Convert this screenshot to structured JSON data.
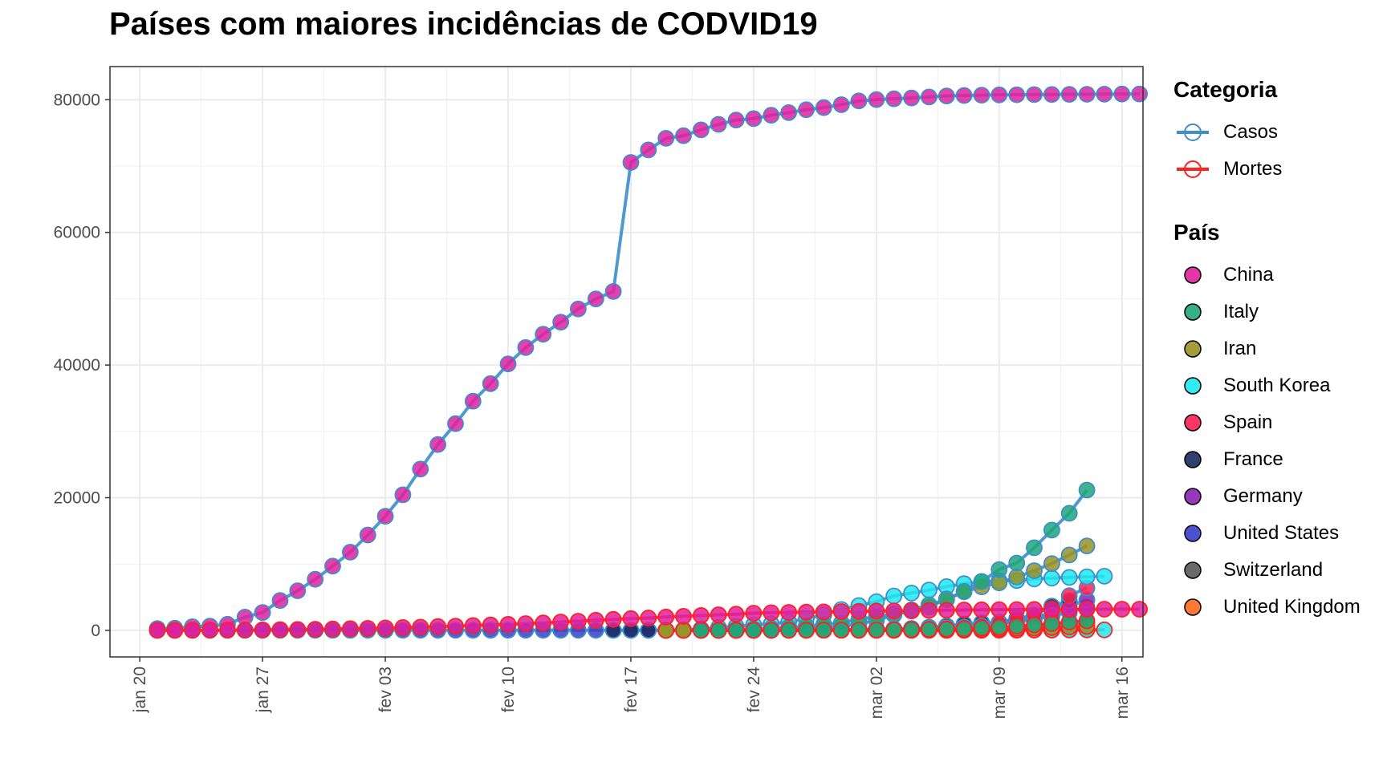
{
  "title": "Países com maiores incidências de CODVID19",
  "legend": {
    "category_title": "Categoria",
    "categories": [
      {
        "label": "Casos",
        "color": "#3d8ec9"
      },
      {
        "label": "Mortes",
        "color": "#ff2020"
      }
    ],
    "country_title": "País",
    "countries": [
      {
        "label": "China",
        "color": "#e0209f"
      },
      {
        "label": "Italy",
        "color": "#1fa67a"
      },
      {
        "label": "Iran",
        "color": "#999226"
      },
      {
        "label": "South Korea",
        "color": "#1ee8f0"
      },
      {
        "label": "Spain",
        "color": "#ff1f55"
      },
      {
        "label": "France",
        "color": "#1b2a5e"
      },
      {
        "label": "Germany",
        "color": "#8b22b5"
      },
      {
        "label": "United States",
        "color": "#3a3ec8"
      },
      {
        "label": "Switzerland",
        "color": "#5a5a5a"
      },
      {
        "label": "United Kingdom",
        "color": "#ff6a1f"
      }
    ]
  },
  "chart_data": {
    "type": "line",
    "title": "Países com maiores incidências de CODVID19",
    "xlabel": "",
    "ylabel": "",
    "x_range": [
      "2020-01-20",
      "2020-03-16"
    ],
    "ylim": [
      -4000,
      85000
    ],
    "x_ticks": [
      "jan 20",
      "jan 27",
      "fev 03",
      "fev 10",
      "fev 17",
      "fev 24",
      "mar 02",
      "mar 09",
      "mar 16"
    ],
    "y_ticks": [
      "0",
      "20000",
      "40000",
      "60000",
      "80000"
    ],
    "grid": true,
    "legend_position": "right",
    "series": [
      {
        "name": "China",
        "category": "Casos",
        "start": "2020-01-21",
        "values": [
          278,
          326,
          547,
          639,
          916,
          2000,
          2700,
          4500,
          5974,
          7711,
          9692,
          11791,
          14380,
          17205,
          20438,
          24324,
          28018,
          31161,
          34546,
          37198,
          40171,
          42638,
          44653,
          46472,
          48467,
          49970,
          51091,
          70548,
          72436,
          74185,
          74576,
          75465,
          76288,
          76936,
          77150,
          77658,
          78064,
          78497,
          78824,
          79251,
          79824,
          80026,
          80151,
          80271,
          80422,
          80573,
          80652,
          80699,
          80735,
          80754,
          80778,
          80793,
          80813,
          80824,
          80844,
          80860,
          80881
        ]
      },
      {
        "name": "China",
        "category": "Mortes",
        "start": "2020-01-21",
        "values": [
          6,
          6,
          17,
          25,
          41,
          56,
          80,
          106,
          132,
          170,
          213,
          259,
          304,
          362,
          426,
          492,
          565,
          638,
          724,
          813,
          908,
          1016,
          1113,
          1259,
          1380,
          1523,
          1665,
          1770,
          1868,
          2004,
          2118,
          2236,
          2345,
          2442,
          2592,
          2663,
          2715,
          2744,
          2788,
          2835,
          2870,
          2912,
          2943,
          2981,
          3013,
          3042,
          3070,
          3097,
          3119,
          3136,
          3158,
          3169,
          3176,
          3189,
          3199,
          3199,
          3199
        ]
      },
      {
        "name": "Italy",
        "category": "Casos",
        "start": "2020-02-21",
        "values": [
          20,
          62,
          155,
          229,
          322,
          453,
          655,
          888,
          1128,
          1694,
          2036,
          2502,
          3089,
          3858,
          4636,
          5883,
          7375,
          9172,
          10149,
          12462,
          15113,
          17660,
          21157
        ]
      },
      {
        "name": "Italy",
        "category": "Mortes",
        "start": "2020-02-21",
        "values": [
          1,
          2,
          3,
          7,
          10,
          12,
          17,
          21,
          29,
          34,
          52,
          79,
          107,
          148,
          197,
          233,
          366,
          463,
          631,
          827,
          1016,
          1266,
          1441
        ]
      },
      {
        "name": "Iran",
        "category": "Casos",
        "start": "2020-02-19",
        "values": [
          2,
          5,
          18,
          28,
          43,
          61,
          95,
          139,
          245,
          388,
          593,
          978,
          1501,
          2336,
          2922,
          3513,
          4747,
          5823,
          6566,
          7161,
          8042,
          9000,
          10075,
          11364,
          12729
        ]
      },
      {
        "name": "Iran",
        "category": "Mortes",
        "start": "2020-02-19",
        "values": [
          2,
          2,
          4,
          5,
          8,
          12,
          16,
          19,
          26,
          34,
          43,
          54,
          66,
          77,
          92,
          107,
          124,
          145,
          194,
          237,
          291,
          354,
          429,
          514,
          611
        ]
      },
      {
        "name": "South Korea",
        "category": "Casos",
        "start": "2020-02-19",
        "values": [
          51,
          104,
          204,
          433,
          602,
          833,
          977,
          1261,
          1766,
          2337,
          3150,
          3736,
          4335,
          5186,
          5621,
          6088,
          6593,
          7041,
          7314,
          7478,
          7513,
          7755,
          7869,
          7979,
          8086,
          8162
        ]
      },
      {
        "name": "South Korea",
        "category": "Mortes",
        "start": "2020-02-19",
        "values": [
          0,
          1,
          2,
          2,
          6,
          8,
          10,
          12,
          13,
          13,
          16,
          17,
          28,
          28,
          35,
          35,
          42,
          44,
          50,
          53,
          54,
          60,
          66,
          66,
          72,
          75
        ]
      },
      {
        "name": "Spain",
        "category": "Casos",
        "start": "2020-03-01",
        "values": [
          84,
          120,
          165,
          222,
          259,
          400,
          500,
          673,
          1073,
          1695,
          2277,
          2277,
          5232,
          6391
        ]
      },
      {
        "name": "Spain",
        "category": "Mortes",
        "start": "2020-03-01",
        "values": [
          0,
          0,
          1,
          2,
          3,
          5,
          10,
          17,
          28,
          35,
          54,
          55,
          133,
          195
        ]
      },
      {
        "name": "France",
        "category": "Casos",
        "start": "2020-02-16",
        "values": [
          12,
          12,
          12,
          12,
          12,
          12,
          12,
          12,
          12,
          12,
          18,
          38,
          57,
          100,
          130,
          191,
          204,
          288,
          380,
          656,
          957,
          1134,
          1217,
          1792,
          2289,
          3667,
          4480
        ]
      },
      {
        "name": "Germany",
        "category": "Casos",
        "start": "2020-03-01",
        "values": [
          130,
          159,
          196,
          262,
          482,
          670,
          799,
          1040,
          1176,
          1457,
          1908,
          2078,
          3675,
          4585
        ]
      },
      {
        "name": "United States",
        "category": "Casos",
        "start": "2020-01-21",
        "values": [
          1,
          1,
          2,
          2,
          5,
          5,
          5,
          5,
          5,
          7,
          8,
          8,
          11,
          11,
          11,
          11,
          11,
          11,
          11,
          11,
          12,
          12,
          13,
          13,
          13,
          13,
          13,
          13,
          13,
          13,
          15,
          15,
          15,
          51,
          51,
          57,
          58,
          60,
          68,
          74,
          98,
          118,
          149,
          217,
          262,
          402,
          518,
          583,
          959,
          1281,
          1663,
          2179,
          2727,
          3499
        ]
      },
      {
        "name": "Switzerland",
        "category": "Casos",
        "start": "2020-03-01",
        "values": [
          27,
          42,
          56,
          90,
          114,
          214,
          268,
          337,
          374,
          491,
          652,
          652,
          1139,
          1359
        ]
      },
      {
        "name": "United Kingdom",
        "category": "Casos",
        "start": "2020-03-01",
        "values": [
          36,
          40,
          51,
          85,
          115,
          163,
          206,
          273,
          321,
          382,
          456,
          456,
          798,
          1140
        ]
      }
    ]
  }
}
